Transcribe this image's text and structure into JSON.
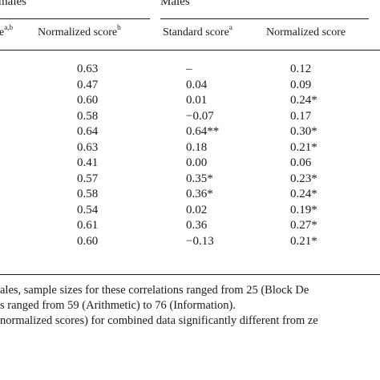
{
  "headers": {
    "group_left": "males",
    "group_right": "Males",
    "left_standard_fragment": "e",
    "left_standard_sup": "a,b",
    "left_normalized": "Normalized score",
    "left_normalized_sup": "b",
    "right_standard": "Standard score",
    "right_standard_sup": "a",
    "right_normalized": "Normalized score"
  },
  "rows": [
    {
      "f_norm": "0.63",
      "m_std": "–",
      "m_norm": "0.12"
    },
    {
      "f_norm": "0.47",
      "m_std": "0.04",
      "m_norm": "0.09"
    },
    {
      "f_norm": "0.60",
      "m_std": "0.01",
      "m_norm": "0.24*"
    },
    {
      "f_norm": "0.58",
      "m_std": "−0.07",
      "m_norm": "0.17"
    },
    {
      "f_norm": "0.64",
      "m_std": "0.64**",
      "m_norm": "0.30*"
    },
    {
      "f_norm": "0.63",
      "m_std": "0.18",
      "m_norm": "0.21*"
    },
    {
      "f_norm": "0.41",
      "m_std": "0.00",
      "m_norm": "0.06"
    },
    {
      "f_norm": "0.57",
      "m_std": "0.35*",
      "m_norm": "0.23*"
    },
    {
      "f_norm": "0.58",
      "m_std": "0.36*",
      "m_norm": "0.24*"
    },
    {
      "f_norm": "0.54",
      "m_std": "0.02",
      "m_norm": "0.19*"
    },
    {
      "f_norm": "0.61",
      "m_std": "0.36",
      "m_norm": "0.27*"
    },
    {
      "f_norm": "0.60",
      "m_std": "−0.13",
      "m_norm": "0.21*"
    }
  ],
  "notes": [
    "ales, sample sizes for these correlations ranged from 25 (Block De",
    "s ranged from 59 (Arithmetic) to 76 (Information).",
    " normalized scores) for combined data significantly different from ze"
  ]
}
